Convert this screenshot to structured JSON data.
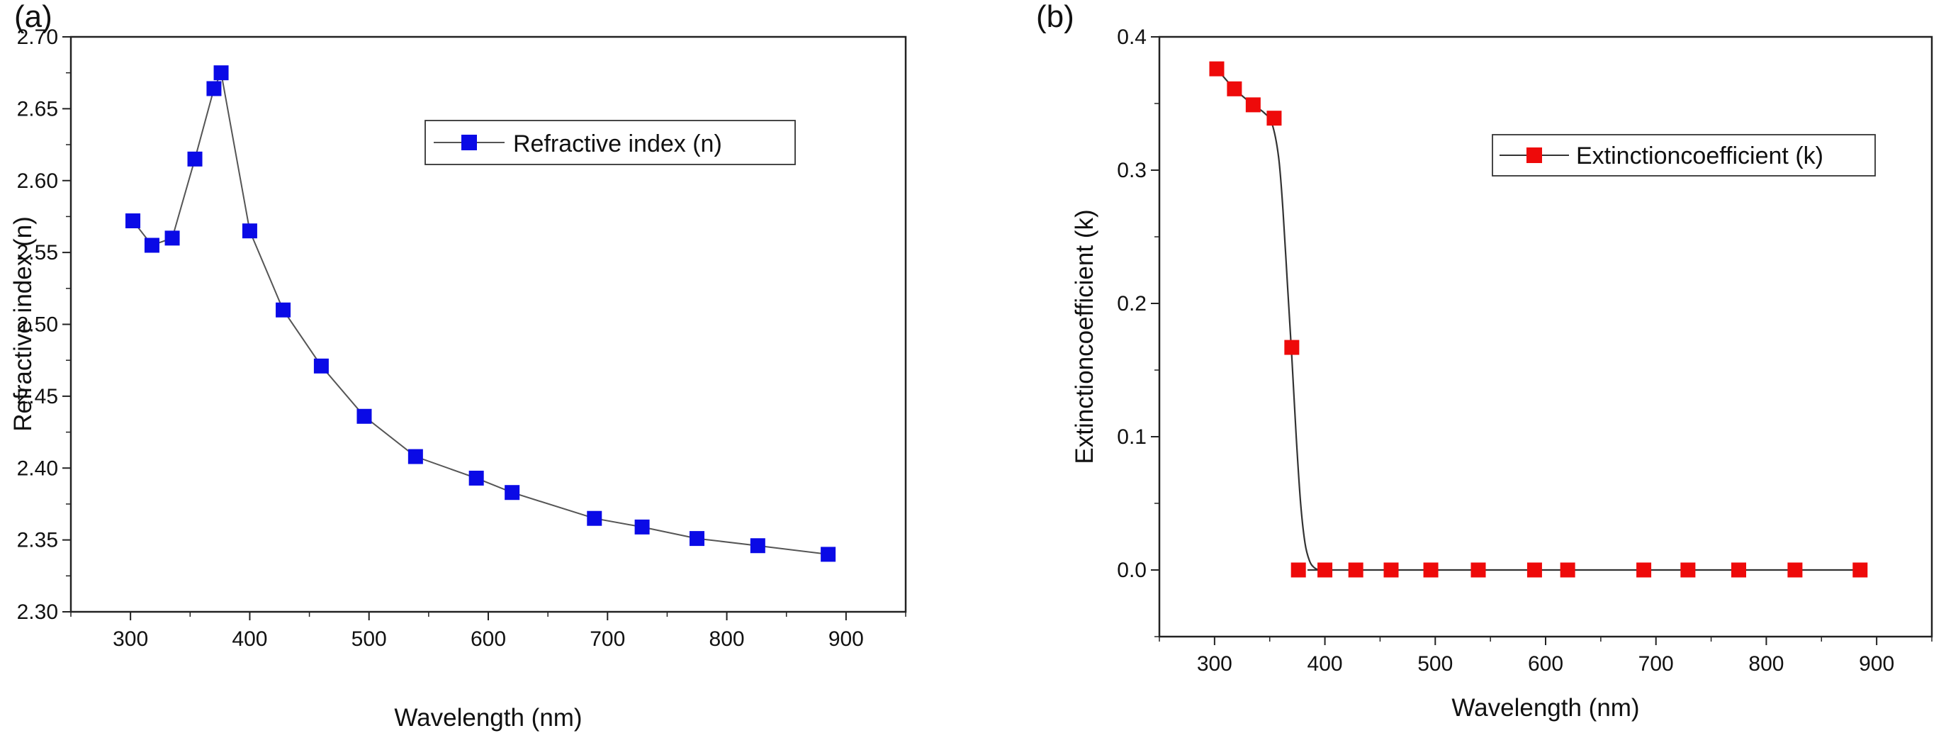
{
  "chart_data": [
    {
      "panel_label": "(a)",
      "type": "line",
      "title": "",
      "xlabel": "Wavelength (nm)",
      "ylabel": "Refractive index (n)",
      "xlim": [
        250,
        950
      ],
      "ylim": [
        2.3,
        2.7
      ],
      "xticks": [
        300,
        400,
        500,
        600,
        700,
        800,
        900
      ],
      "yticks": [
        2.3,
        2.35,
        2.4,
        2.45,
        2.5,
        2.55,
        2.6,
        2.65,
        2.7
      ],
      "ytick_decimals": 2,
      "grid": false,
      "legend_position": "top-right",
      "series": [
        {
          "name": "Refractive index (n)",
          "marker": "square",
          "color": "#0a0ae6",
          "line_color": "#555555",
          "x": [
            302,
            318,
            335,
            354,
            370,
            376,
            400,
            428,
            460,
            496,
            539,
            590,
            620,
            689,
            729,
            775,
            826,
            885
          ],
          "y": [
            2.572,
            2.555,
            2.56,
            2.615,
            2.664,
            2.675,
            2.565,
            2.51,
            2.471,
            2.436,
            2.408,
            2.393,
            2.383,
            2.365,
            2.359,
            2.351,
            2.346,
            2.34
          ]
        }
      ]
    },
    {
      "panel_label": "(b)",
      "type": "line",
      "title": "",
      "xlabel": "Wavelength (nm)",
      "ylabel": "Extinctioncoefficient (k)",
      "xlim": [
        250,
        950
      ],
      "ylim": [
        -0.05,
        0.4
      ],
      "xticks": [
        300,
        400,
        500,
        600,
        700,
        800,
        900
      ],
      "yticks": [
        0.0,
        0.1,
        0.2,
        0.3,
        0.4
      ],
      "ytick_decimals": 1,
      "grid": false,
      "legend_position": "top-right",
      "series": [
        {
          "name": "Extinctioncoefficient (k)",
          "marker": "square",
          "color": "#ee0a0a",
          "line_color": "#333333",
          "x": [
            302,
            318,
            335,
            354,
            370,
            376,
            400,
            428,
            460,
            496,
            539,
            590,
            620,
            689,
            729,
            775,
            826,
            885
          ],
          "y": [
            0.376,
            0.361,
            0.349,
            0.339,
            0.167,
            0.0,
            0.0,
            0.0,
            0.0,
            0.0,
            0.0,
            0.0,
            0.0,
            0.0,
            0.0,
            0.0,
            0.0,
            0.0
          ],
          "fit_curve": {
            "x": [
              302,
              318,
              335,
              345,
              352,
              358,
              362,
              366,
              370,
              374,
              378,
              382,
              386,
              390,
              395,
              400,
              428,
              885
            ],
            "y": [
              0.376,
              0.361,
              0.349,
              0.343,
              0.335,
              0.31,
              0.27,
              0.215,
              0.16,
              0.1,
              0.05,
              0.02,
              0.007,
              0.002,
              0.0,
              0.0,
              0.0,
              0.0
            ]
          }
        }
      ]
    }
  ]
}
